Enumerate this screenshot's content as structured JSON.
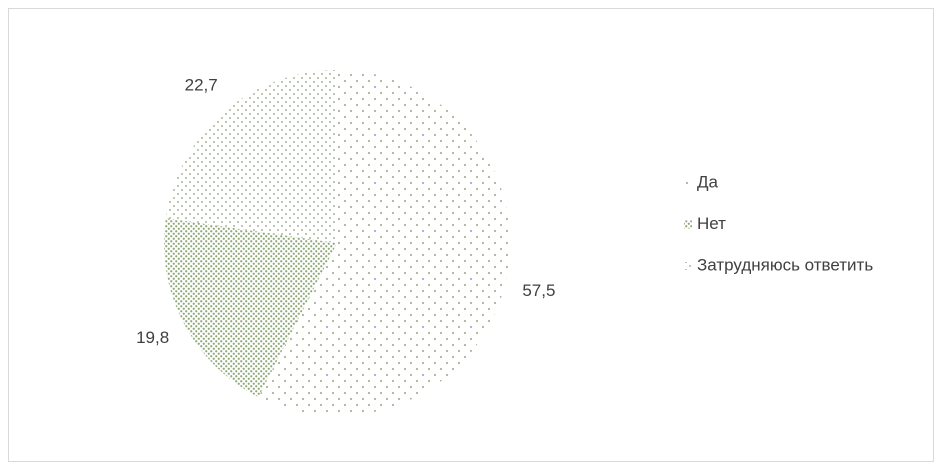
{
  "chart_data": {
    "type": "pie",
    "categories": [
      "Да",
      "Нет",
      "Затрудняюсь ответить"
    ],
    "values": [
      57.5,
      19.8,
      22.7
    ],
    "value_labels": [
      "57,5",
      "19,8",
      "22,7"
    ],
    "colors": [
      "#a9b596",
      "#8fa878",
      "#a9b596"
    ],
    "legend": "right"
  }
}
